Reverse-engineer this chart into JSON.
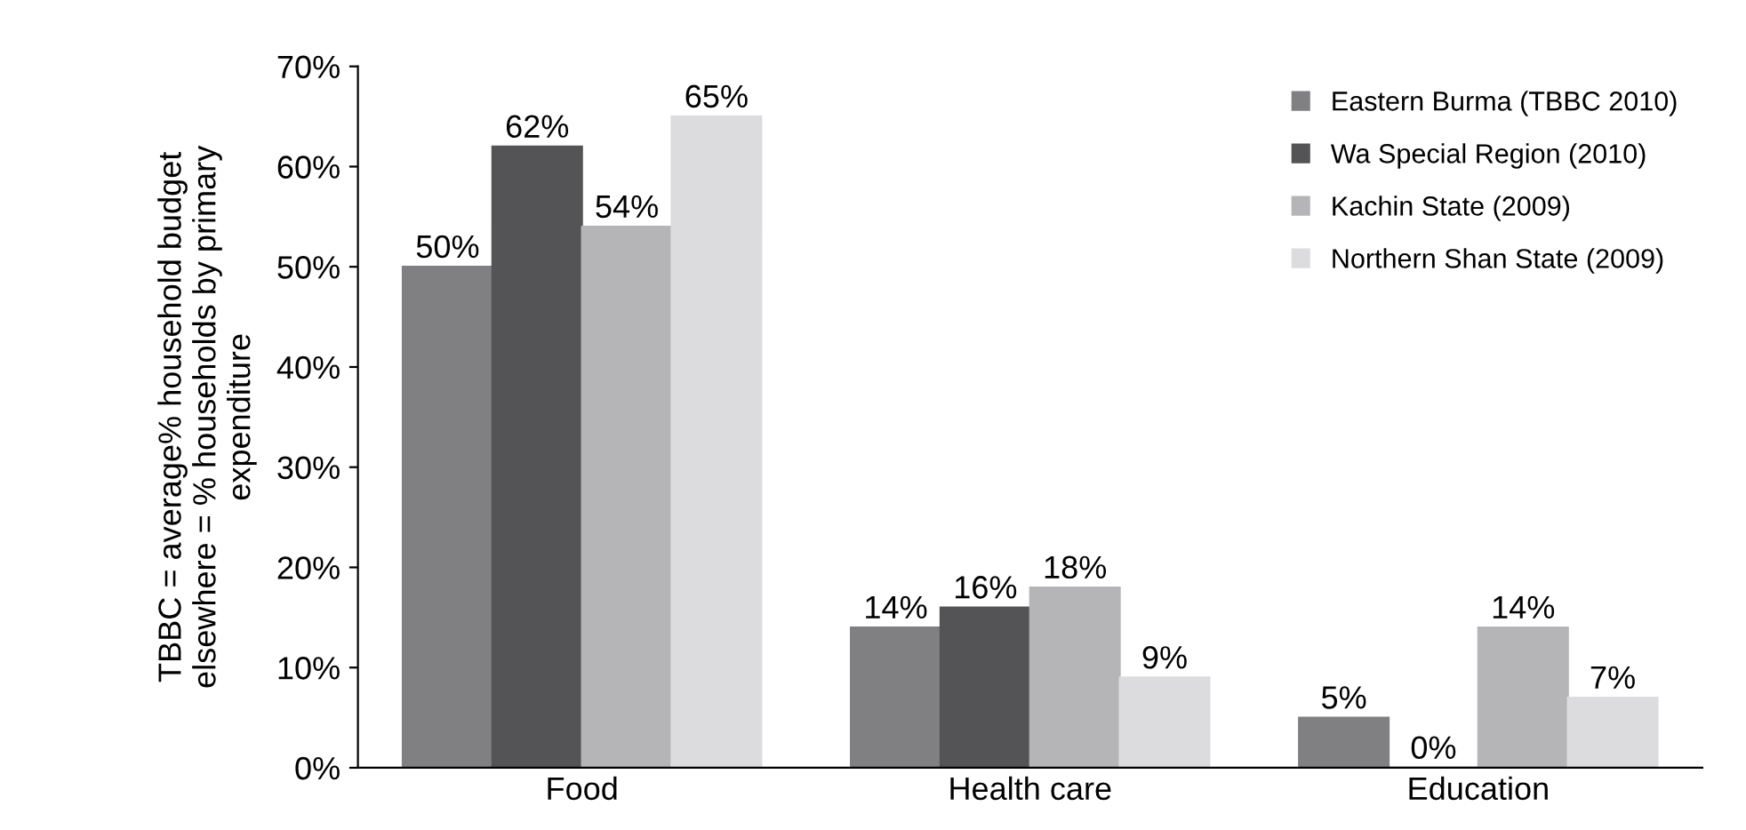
{
  "chart_data": {
    "type": "bar",
    "ylabel": "TBBC = average% household budget\nelsewhere = % households by primary\nexpenditure",
    "categories": [
      "Food",
      "Health care",
      "Education"
    ],
    "series": [
      {
        "name": "Eastern Burma (TBBC 2010)",
        "color": "#808083",
        "values": [
          50,
          14,
          5
        ],
        "value_labels": [
          "50%",
          "14%",
          "5%"
        ]
      },
      {
        "name": "Wa Special Region (2010)",
        "color": "#545456",
        "values": [
          62,
          16,
          0
        ],
        "value_labels": [
          "62%",
          "16%",
          "0%"
        ]
      },
      {
        "name": "Kachin State (2009)",
        "color": "#b5b5b7",
        "values": [
          54,
          18,
          14
        ],
        "value_labels": [
          "54%",
          "18%",
          "14%"
        ]
      },
      {
        "name": "Northern Shan State (2009)",
        "color": "#dcdcde",
        "values": [
          65,
          9,
          7
        ],
        "value_labels": [
          "65%",
          "9%",
          "7%"
        ]
      }
    ],
    "ylim": [
      0,
      70
    ],
    "yticks": [
      {
        "value": 0,
        "label": "0%"
      },
      {
        "value": 10,
        "label": "10%"
      },
      {
        "value": 20,
        "label": "20%"
      },
      {
        "value": 30,
        "label": "30%"
      },
      {
        "value": 40,
        "label": "40%"
      },
      {
        "value": 50,
        "label": "50%"
      },
      {
        "value": 60,
        "label": "60%"
      },
      {
        "value": 70,
        "label": "70%"
      }
    ],
    "grid": false,
    "legend": "top right"
  }
}
